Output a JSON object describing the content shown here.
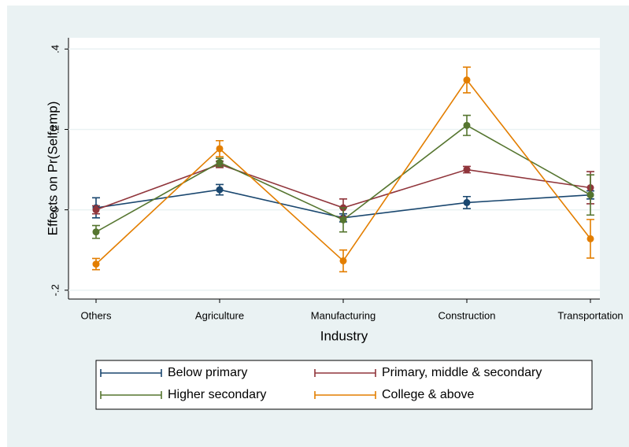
{
  "chart_data": {
    "type": "line",
    "x_label": "Industry",
    "y_label": "Effects on Pr(Selfemp)",
    "categories": [
      "Others",
      "Agriculture",
      "Manufacturing",
      "Construction",
      "Transportation"
    ],
    "series": [
      {
        "name": "Below primary",
        "color": "#1a476f",
        "values": [
          0.005,
          0.05,
          -0.02,
          0.018,
          0.037
        ],
        "errors": [
          0.025,
          0.013,
          0.01,
          0.015,
          0.01
        ]
      },
      {
        "name": "Primary, middle & secondary",
        "color": "#90353b",
        "values": [
          0.0,
          0.113,
          0.005,
          0.1,
          0.055
        ],
        "errors": [
          0.01,
          0.008,
          0.022,
          0.008,
          0.04
        ]
      },
      {
        "name": "Higher secondary",
        "color": "#55752f",
        "values": [
          -0.055,
          0.118,
          -0.025,
          0.21,
          0.037
        ],
        "errors": [
          0.016,
          0.01,
          0.03,
          0.025,
          0.05
        ]
      },
      {
        "name": "College & above",
        "color": "#e37e00",
        "values": [
          -0.135,
          0.152,
          -0.127,
          0.323,
          -0.072
        ],
        "errors": [
          0.014,
          0.02,
          0.027,
          0.032,
          0.048
        ]
      }
    ],
    "ylim": [
      -0.222,
      0.428
    ],
    "yticks": [
      {
        "value": -0.2,
        "label": "-.2"
      },
      0,
      {
        "value": 0.2,
        "label": ".2"
      },
      {
        "value": 0.4,
        "label": ".4"
      }
    ],
    "grid": true
  }
}
